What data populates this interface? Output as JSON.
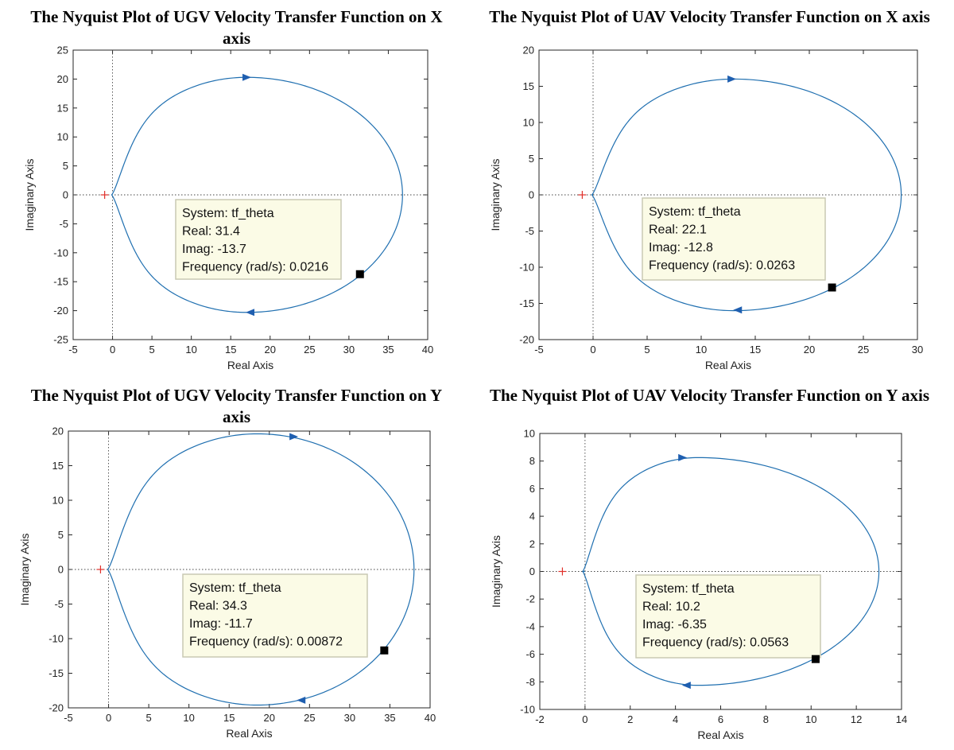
{
  "chart_data": [
    {
      "type": "line",
      "title": "The Nyquist Plot of UGV Velocity Transfer Function on X axis",
      "xlabel": "Real Axis",
      "ylabel": "Imaginary Axis",
      "xlim": [
        -5,
        40
      ],
      "ylim": [
        -25,
        25
      ],
      "xticks": [
        -5,
        0,
        5,
        10,
        15,
        20,
        25,
        30,
        35,
        40
      ],
      "yticks": [
        -25,
        -20,
        -15,
        -10,
        -5,
        0,
        5,
        10,
        15,
        20,
        25
      ],
      "curve": {
        "real_max": 36.8,
        "real_min": -0.1,
        "imag_max": 20.3,
        "imag_min": -20.3,
        "center_real": 17.0
      },
      "critical_point": [
        -1,
        0
      ],
      "marker": [
        31.4,
        -13.7
      ],
      "arrows": [
        {
          "x": 17,
          "y": 20.3,
          "dir": "right"
        },
        {
          "x": 17.5,
          "y": -20.3,
          "dir": "left"
        }
      ],
      "tooltip": {
        "system": "System: tf_theta",
        "real": "Real: 31.4",
        "imag": "Imag: -13.7",
        "freq": "Frequency (rad/s): 0.0216"
      },
      "grid": false,
      "color": "#1f6fb0"
    },
    {
      "type": "line",
      "title": "The Nyquist Plot of UAV Velocity Transfer Function on X axis",
      "xlabel": "Real Axis",
      "ylabel": "Imaginary Axis",
      "xlim": [
        -5,
        30
      ],
      "ylim": [
        -20,
        20
      ],
      "xticks": [
        -5,
        0,
        5,
        10,
        15,
        20,
        25,
        30
      ],
      "yticks": [
        -20,
        -15,
        -10,
        -5,
        0,
        5,
        10,
        15,
        20
      ],
      "curve": {
        "real_max": 28.5,
        "real_min": -0.1,
        "imag_max": 16.0,
        "imag_min": -16.0,
        "center_real": 13.0
      },
      "critical_point": [
        -1,
        0
      ],
      "marker": [
        22.1,
        -12.8
      ],
      "arrows": [
        {
          "x": 12.8,
          "y": 16.0,
          "dir": "right"
        },
        {
          "x": 13.4,
          "y": -15.9,
          "dir": "left"
        }
      ],
      "tooltip": {
        "system": "System: tf_theta",
        "real": "Real: 22.1",
        "imag": "Imag: -12.8",
        "freq": "Frequency (rad/s): 0.0263"
      },
      "grid": false,
      "color": "#1f6fb0"
    },
    {
      "type": "line",
      "title": "The Nyquist Plot of UGV Velocity Transfer Function on Y axis",
      "xlabel": "Real Axis",
      "ylabel": "Imaginary Axis",
      "xlim": [
        -5,
        40
      ],
      "ylim": [
        -20,
        20
      ],
      "xticks": [
        -5,
        0,
        5,
        10,
        15,
        20,
        25,
        30,
        35,
        40
      ],
      "yticks": [
        -20,
        -15,
        -10,
        -5,
        0,
        5,
        10,
        15,
        20
      ],
      "curve": {
        "real_max": 38.0,
        "real_min": -0.1,
        "imag_max": 19.6,
        "imag_min": -19.6,
        "center_real": 18.5
      },
      "critical_point": [
        -1,
        0
      ],
      "marker": [
        34.3,
        -11.7
      ],
      "arrows": [
        {
          "x": 23,
          "y": 19.2,
          "dir": "right"
        },
        {
          "x": 24,
          "y": -18.9,
          "dir": "left"
        }
      ],
      "tooltip": {
        "system": "System: tf_theta",
        "real": "Real: 34.3",
        "imag": "Imag: -11.7",
        "freq": "Frequency (rad/s): 0.00872"
      },
      "grid": false,
      "color": "#1f6fb0"
    },
    {
      "type": "line",
      "title": "The Nyquist Plot of UAV Velocity Transfer Function on Y axis",
      "xlabel": "Real Axis",
      "ylabel": "Imaginary Axis",
      "xlim": [
        -2,
        14
      ],
      "ylim": [
        -10,
        10
      ],
      "xticks": [
        -2,
        0,
        2,
        4,
        6,
        8,
        10,
        12,
        14
      ],
      "yticks": [
        -10,
        -8,
        -6,
        -4,
        -2,
        0,
        2,
        4,
        6,
        8,
        10
      ],
      "curve": {
        "real_max": 13.0,
        "real_min": -0.1,
        "imag_max": 8.25,
        "imag_min": -8.25,
        "center_real": 5.0
      },
      "critical_point": [
        -1,
        0
      ],
      "marker": [
        10.2,
        -6.35
      ],
      "arrows": [
        {
          "x": 4.3,
          "y": 8.25,
          "dir": "right"
        },
        {
          "x": 4.5,
          "y": -8.25,
          "dir": "left"
        }
      ],
      "tooltip": {
        "system": "System: tf_theta",
        "real": "Real: 10.2",
        "imag": "Imag: -6.35",
        "freq": "Frequency (rad/s): 0.0563"
      },
      "grid": false,
      "color": "#1f6fb0"
    }
  ]
}
